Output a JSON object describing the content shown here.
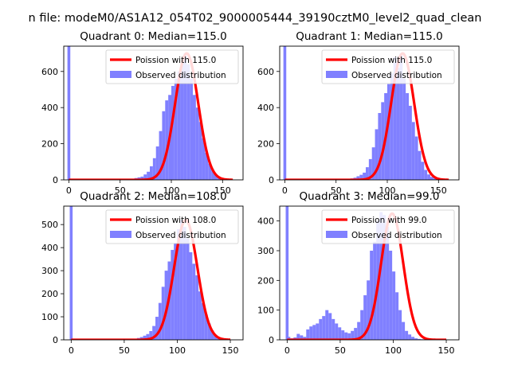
{
  "figure": {
    "suptitle": "n file: modeM0/AS1A12_054T02_9000005444_39190cztM0_level2_quad_clean"
  },
  "chart_data": [
    {
      "type": "bar",
      "title": "Quadrant 0: Median=115.0",
      "xlim": [
        -5,
        170
      ],
      "ylim": [
        0,
        740
      ],
      "xticks": [
        0,
        50,
        100,
        150
      ],
      "yticks": [
        0,
        200,
        400,
        600
      ],
      "legend": {
        "placement": "top-right",
        "line_label": "Poission with 115.0",
        "hist_label": "Observed distribution"
      },
      "hist_color": "#8080ff",
      "line_color": "#ff0000",
      "spike": {
        "x": 0,
        "value": 740
      },
      "hist": {
        "start": 64,
        "width": 3,
        "values": [
          10,
          14,
          18,
          30,
          45,
          75,
          120,
          185,
          270,
          380,
          440,
          470,
          520,
          560,
          600,
          650,
          700,
          640,
          560,
          470,
          400,
          320,
          230,
          150,
          90,
          55,
          30,
          15,
          8,
          4,
          2
        ]
      },
      "poisson": {
        "mean": 115.0,
        "peak": 700,
        "range": [
          0,
          160
        ]
      }
    },
    {
      "type": "bar",
      "title": "Quadrant 1: Median=115.0",
      "xlim": [
        -5,
        170
      ],
      "ylim": [
        0,
        740
      ],
      "xticks": [
        0,
        50,
        100,
        150
      ],
      "yticks": [
        0,
        200,
        400,
        600
      ],
      "legend": {
        "placement": "top-right",
        "line_label": "Poission with 115.0",
        "hist_label": "Observed distribution"
      },
      "hist_color": "#8080ff",
      "line_color": "#ff0000",
      "spike": {
        "x": 0,
        "value": 740
      },
      "hist": {
        "start": 64,
        "width": 3,
        "values": [
          8,
          12,
          20,
          28,
          40,
          70,
          115,
          180,
          280,
          370,
          430,
          480,
          530,
          590,
          680,
          620,
          700,
          560,
          480,
          410,
          320,
          240,
          160,
          100,
          55,
          30,
          16,
          8,
          4,
          2,
          1
        ]
      },
      "poisson": {
        "mean": 115.0,
        "peak": 700,
        "range": [
          0,
          160
        ]
      }
    },
    {
      "type": "bar",
      "title": "Quadrant 2: Median=108.0",
      "xlim": [
        -7,
        162
      ],
      "ylim": [
        0,
        580
      ],
      "xticks": [
        0,
        50,
        100,
        150
      ],
      "yticks": [
        0,
        100,
        200,
        300,
        400,
        500
      ],
      "legend": {
        "placement": "top-right",
        "line_label": "Poission with 108.0",
        "hist_label": "Observed distribution"
      },
      "hist_color": "#8080ff",
      "line_color": "#ff0000",
      "spike": {
        "x": 0,
        "value": 580
      },
      "hist": {
        "start": 62,
        "width": 2.9,
        "values": [
          8,
          12,
          18,
          25,
          38,
          60,
          100,
          160,
          230,
          300,
          340,
          390,
          420,
          480,
          520,
          490,
          440,
          380,
          330,
          280,
          210,
          160,
          110,
          70,
          40,
          22,
          12,
          6,
          3,
          1
        ]
      },
      "poisson": {
        "mean": 108.0,
        "peak": 520,
        "range": [
          0,
          150
        ]
      }
    },
    {
      "type": "bar",
      "title": "Quadrant 3: Median=99.0",
      "xlim": [
        -7,
        162
      ],
      "ylim": [
        0,
        450
      ],
      "xticks": [
        0,
        50,
        100,
        150
      ],
      "yticks": [
        0,
        100,
        200,
        300,
        400
      ],
      "legend": {
        "placement": "top-right",
        "line_label": "Poission with 99.0",
        "hist_label": "Observed distribution"
      },
      "hist_color": "#8080ff",
      "line_color": "#ff0000",
      "spike": {
        "x": 0,
        "value": 450
      },
      "hist": {
        "start": 0,
        "width": 3,
        "values": [
          10,
          5,
          8,
          20,
          15,
          10,
          35,
          45,
          50,
          55,
          70,
          80,
          100,
          90,
          70,
          55,
          42,
          32,
          25,
          22,
          30,
          40,
          60,
          100,
          150,
          200,
          300,
          330,
          400,
          430,
          420,
          380,
          300,
          230,
          160,
          100,
          60,
          30,
          18,
          10,
          5,
          3,
          2,
          1,
          1,
          0,
          0,
          0,
          0,
          0
        ]
      },
      "poisson": {
        "mean": 99.0,
        "peak": 425,
        "range": [
          0,
          150
        ]
      }
    }
  ]
}
